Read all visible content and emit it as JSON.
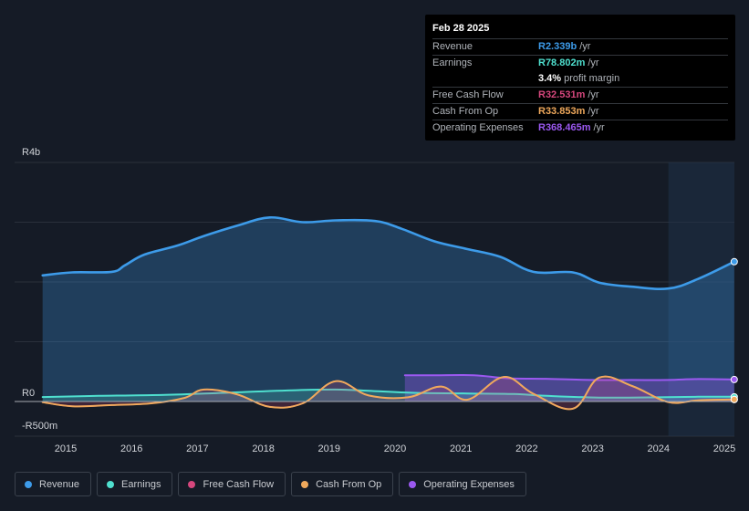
{
  "tooltip": {
    "date": "Feb 28 2025",
    "rows": [
      {
        "label": "Revenue",
        "value": "R2.339b",
        "unit": "/yr",
        "color": "#3d9be9"
      },
      {
        "label": "Earnings",
        "value": "R78.802m",
        "unit": "/yr",
        "color": "#4fe0cf"
      },
      {
        "label": "",
        "value": "3.4%",
        "unit": "profit margin",
        "color": "#ffffff"
      },
      {
        "label": "Free Cash Flow",
        "value": "R32.531m",
        "unit": "/yr",
        "color": "#d6477d"
      },
      {
        "label": "Cash From Op",
        "value": "R33.853m",
        "unit": "/yr",
        "color": "#f0a95c"
      },
      {
        "label": "Operating Expenses",
        "value": "R368.465m",
        "unit": "/yr",
        "color": "#9b59f0"
      }
    ]
  },
  "legend": [
    {
      "label": "Revenue",
      "color": "#3d9be9"
    },
    {
      "label": "Earnings",
      "color": "#4fe0cf"
    },
    {
      "label": "Free Cash Flow",
      "color": "#d6477d"
    },
    {
      "label": "Cash From Op",
      "color": "#f0a95c"
    },
    {
      "label": "Operating Expenses",
      "color": "#9b59f0"
    }
  ],
  "chart_data": {
    "type": "area",
    "title": "",
    "xlabel": "",
    "ylabel": "",
    "y_tick_labels": [
      {
        "label": "R4b",
        "value": 4000
      },
      {
        "label": "R0",
        "value": 0
      },
      {
        "label": "-R500m",
        "value": -500
      }
    ],
    "ylim": [
      -500,
      4000
    ],
    "xlim": [
      2014.6,
      2025.15
    ],
    "x_tick_labels": [
      "2015",
      "2016",
      "2017",
      "2018",
      "2019",
      "2020",
      "2021",
      "2022",
      "2023",
      "2024",
      "2025"
    ],
    "x_ticks": [
      2015,
      2016,
      2017,
      2018,
      2019,
      2020,
      2021,
      2022,
      2023,
      2024,
      2025
    ],
    "forecast_start": 2024.15,
    "series": [
      {
        "name": "Revenue",
        "color": "#3d9be9",
        "fill": true,
        "points": [
          [
            2014.65,
            2110
          ],
          [
            2015.1,
            2160
          ],
          [
            2015.7,
            2170
          ],
          [
            2015.9,
            2280
          ],
          [
            2016.2,
            2460
          ],
          [
            2016.7,
            2610
          ],
          [
            2017.1,
            2770
          ],
          [
            2017.6,
            2940
          ],
          [
            2018.1,
            3080
          ],
          [
            2018.6,
            3000
          ],
          [
            2019.1,
            3030
          ],
          [
            2019.7,
            3020
          ],
          [
            2020.1,
            2890
          ],
          [
            2020.6,
            2680
          ],
          [
            2021.1,
            2550
          ],
          [
            2021.6,
            2420
          ],
          [
            2022.1,
            2170
          ],
          [
            2022.7,
            2160
          ],
          [
            2023.1,
            1990
          ],
          [
            2023.6,
            1920
          ],
          [
            2024.15,
            1890
          ],
          [
            2024.6,
            2050
          ],
          [
            2025.15,
            2339
          ]
        ]
      },
      {
        "name": "Earnings",
        "color": "#4fe0cf",
        "fill": true,
        "points": [
          [
            2014.65,
            75
          ],
          [
            2015.5,
            95
          ],
          [
            2016.5,
            110
          ],
          [
            2017.5,
            150
          ],
          [
            2018.5,
            190
          ],
          [
            2019.1,
            200
          ],
          [
            2019.6,
            180
          ],
          [
            2020.3,
            145
          ],
          [
            2021.1,
            135
          ],
          [
            2021.8,
            125
          ],
          [
            2022.3,
            95
          ],
          [
            2023.1,
            65
          ],
          [
            2024.0,
            70
          ],
          [
            2024.6,
            80
          ],
          [
            2025.15,
            79
          ]
        ]
      },
      {
        "name": "Free Cash Flow",
        "color": "#d6477d",
        "fill": true,
        "points": [
          [
            2014.65,
            -10
          ],
          [
            2015.1,
            -80
          ],
          [
            2015.7,
            -60
          ],
          [
            2016.3,
            -30
          ],
          [
            2016.8,
            60
          ],
          [
            2017.1,
            200
          ],
          [
            2017.6,
            120
          ],
          [
            2018.1,
            -90
          ],
          [
            2018.6,
            -30
          ],
          [
            2019.1,
            340
          ],
          [
            2019.6,
            100
          ],
          [
            2020.2,
            70
          ],
          [
            2020.7,
            250
          ],
          [
            2021.1,
            30
          ],
          [
            2021.65,
            410
          ],
          [
            2022.1,
            130
          ],
          [
            2022.7,
            -120
          ],
          [
            2023.1,
            400
          ],
          [
            2023.6,
            260
          ],
          [
            2024.15,
            -10
          ],
          [
            2024.6,
            20
          ],
          [
            2025.15,
            33
          ]
        ]
      },
      {
        "name": "Cash From Op",
        "color": "#f0a95c",
        "fill": false,
        "points": [
          [
            2014.65,
            -10
          ],
          [
            2015.1,
            -80
          ],
          [
            2015.7,
            -60
          ],
          [
            2016.3,
            -30
          ],
          [
            2016.8,
            60
          ],
          [
            2017.1,
            200
          ],
          [
            2017.6,
            120
          ],
          [
            2018.1,
            -90
          ],
          [
            2018.6,
            -30
          ],
          [
            2019.1,
            340
          ],
          [
            2019.6,
            100
          ],
          [
            2020.2,
            70
          ],
          [
            2020.7,
            250
          ],
          [
            2021.1,
            30
          ],
          [
            2021.65,
            410
          ],
          [
            2022.1,
            130
          ],
          [
            2022.7,
            -120
          ],
          [
            2023.1,
            400
          ],
          [
            2023.6,
            260
          ],
          [
            2024.15,
            -10
          ],
          [
            2024.6,
            20
          ],
          [
            2025.15,
            34
          ]
        ]
      },
      {
        "name": "Operating Expenses",
        "color": "#9b59f0",
        "fill": true,
        "points": [
          [
            2020.15,
            440
          ],
          [
            2020.6,
            440
          ],
          [
            2021.2,
            440
          ],
          [
            2021.7,
            390
          ],
          [
            2022.3,
            380
          ],
          [
            2023.0,
            360
          ],
          [
            2023.6,
            360
          ],
          [
            2024.15,
            360
          ],
          [
            2024.6,
            375
          ],
          [
            2025.15,
            368
          ]
        ]
      }
    ]
  }
}
